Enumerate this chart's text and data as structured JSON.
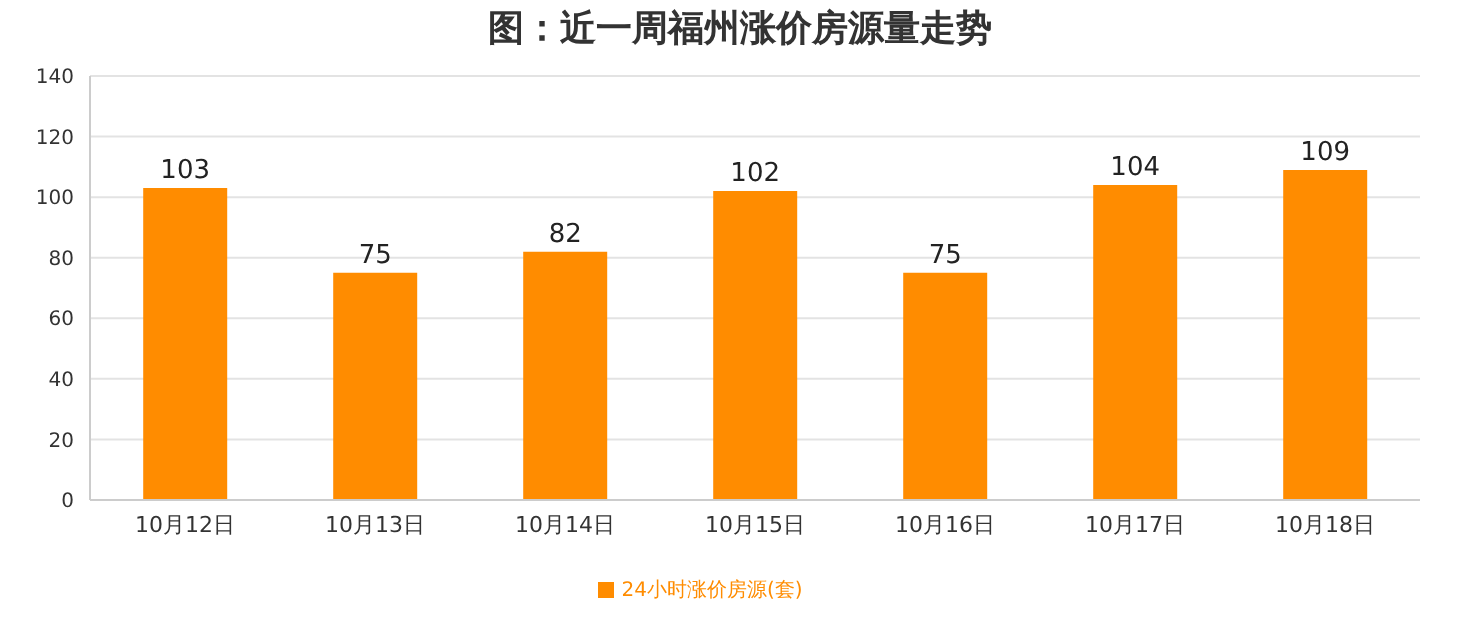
{
  "chart_data": {
    "type": "bar",
    "title": "图：近一周福州涨价房源量走势",
    "categories": [
      "10月12日",
      "10月13日",
      "10月14日",
      "10月15日",
      "10月16日",
      "10月17日",
      "10月18日"
    ],
    "series": [
      {
        "name": "24小时涨价房源(套)",
        "color": "#ff8c00",
        "values": [
          103,
          75,
          82,
          102,
          75,
          104,
          109
        ]
      }
    ],
    "ylim": [
      0,
      140
    ],
    "yticks": [
      0,
      20,
      40,
      60,
      80,
      100,
      120,
      140
    ],
    "grid": "y",
    "legend": "bottom",
    "data_labels": true
  }
}
